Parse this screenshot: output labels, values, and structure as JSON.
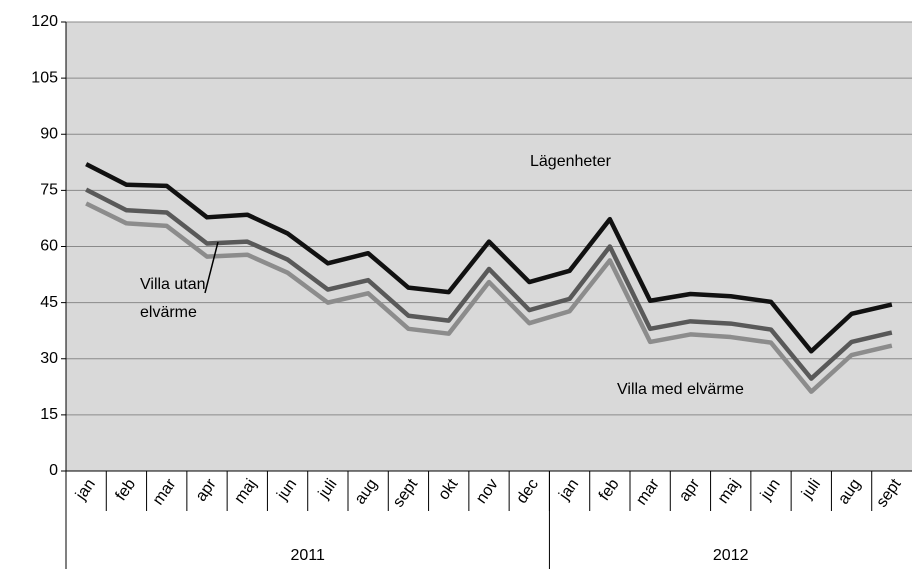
{
  "chart_data": {
    "type": "line",
    "categories": [
      "jan",
      "feb",
      "mar",
      "apr",
      "maj",
      "jun",
      "juli",
      "aug",
      "sept",
      "okt",
      "nov",
      "dec",
      "jan",
      "feb",
      "mar",
      "apr",
      "maj",
      "jun",
      "juli",
      "aug",
      "sept"
    ],
    "category_groups": [
      {
        "label": "2011",
        "span": 12
      },
      {
        "label": "2012",
        "span": 9
      }
    ],
    "series": [
      {
        "name": "Lägenheter",
        "color": "#111111",
        "values": [
          82,
          76.5,
          76.2,
          67.8,
          68.5,
          63.5,
          55.5,
          58.2,
          49,
          47.8,
          61.3,
          50.5,
          53.5,
          67.3,
          45.5,
          47.3,
          46.7,
          45.2,
          32,
          42,
          44.5
        ]
      },
      {
        "name": "Villa utan elvärme",
        "color": "#595959",
        "values": [
          75.2,
          69.7,
          69.1,
          60.8,
          61.3,
          56.5,
          48.5,
          51,
          41.5,
          40.2,
          54,
          43,
          46,
          60,
          38,
          40,
          39.4,
          37.8,
          24.7,
          34.5,
          37
        ]
      },
      {
        "name": "Villa med elvärme",
        "color": "#8c8c8c",
        "values": [
          71.5,
          66.2,
          65.5,
          57.3,
          57.8,
          53,
          45,
          47.5,
          38,
          36.7,
          50.5,
          39.5,
          42.7,
          56.3,
          34.5,
          36.5,
          35.8,
          34.3,
          21.2,
          31,
          33.5
        ]
      }
    ],
    "ylim": [
      0,
      120
    ],
    "yticks": [
      0,
      15,
      30,
      45,
      60,
      75,
      90,
      105,
      120
    ],
    "grid": true,
    "plot_background": "#d9d9d9"
  }
}
